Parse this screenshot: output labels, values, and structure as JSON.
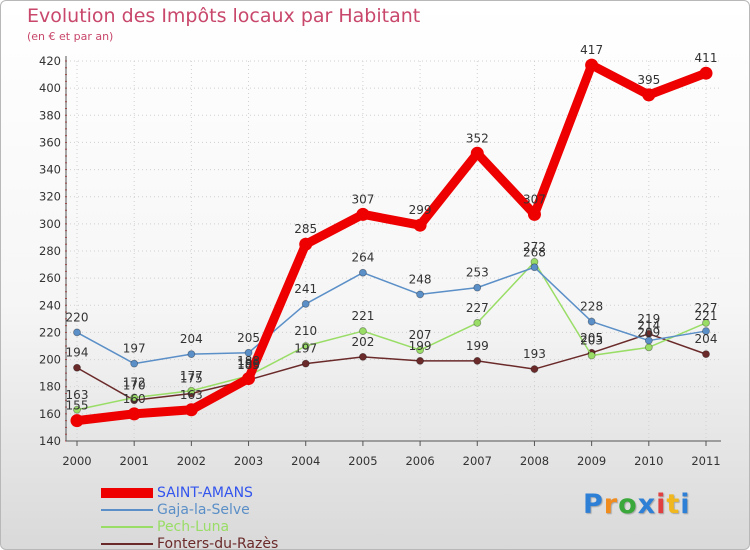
{
  "header": {
    "title": "Evolution des Impôts locaux par Habitant",
    "subtitle": "(en € et par an)"
  },
  "logo": {
    "letters": [
      "P",
      "r",
      "o",
      "x",
      "i",
      "t",
      "i"
    ],
    "colors": [
      "#2e7fd6",
      "#f08c1e",
      "#3aa83a",
      "#2e7fd6",
      "#e04040",
      "#f0b81e",
      "#2e7fd6"
    ]
  },
  "chart_data": {
    "type": "line",
    "title": "Evolution des Impôts locaux par Habitant",
    "subtitle": "(en € et par an)",
    "xlabel": "",
    "ylabel": "",
    "x": [
      "2000",
      "2001",
      "2002",
      "2003",
      "2004",
      "2005",
      "2006",
      "2007",
      "2008",
      "2009",
      "2010",
      "2011"
    ],
    "ylim": [
      140,
      420
    ],
    "yticks": [
      140,
      160,
      180,
      200,
      220,
      240,
      260,
      280,
      300,
      320,
      340,
      360,
      380,
      400,
      420
    ],
    "grid": true,
    "legend_position": "bottom-left",
    "series": [
      {
        "name": "SAINT-AMANS",
        "color": "#ee0000",
        "values": [
          155,
          160,
          163,
          186,
          285,
          307,
          299,
          352,
          307,
          417,
          395,
          411
        ],
        "labels": [
          "155",
          "160",
          "163",
          "186",
          "285",
          "307",
          "299",
          "352",
          "307",
          "417",
          "395",
          "411"
        ]
      },
      {
        "name": "Gaja-la-Selve",
        "color": "#5b8fc7",
        "values": [
          220,
          197,
          204,
          205,
          241,
          264,
          248,
          253,
          268,
          228,
          214,
          221
        ],
        "labels": [
          "220",
          "197",
          "204",
          "205",
          "241",
          "264",
          "248",
          "253",
          "268",
          "228",
          "214",
          "221"
        ]
      },
      {
        "name": "Pech-Luna",
        "color": "#99dd66",
        "values": [
          163,
          172,
          177,
          188,
          210,
          221,
          207,
          227,
          272,
          203,
          209,
          227
        ],
        "labels": [
          "163",
          "172",
          "177",
          "188",
          "210",
          "221",
          "207",
          "227",
          "272",
          "203",
          "209",
          "227"
        ]
      },
      {
        "name": "Fonters-du-Razès",
        "color": "#6b2a2a",
        "values": [
          194,
          170,
          175,
          185,
          197,
          202,
          199,
          199,
          193,
          205,
          219,
          204
        ],
        "labels": [
          "194",
          "170",
          "175",
          "185",
          "197",
          "202",
          "199",
          "199",
          "193",
          "205",
          "219",
          "204"
        ]
      }
    ]
  }
}
